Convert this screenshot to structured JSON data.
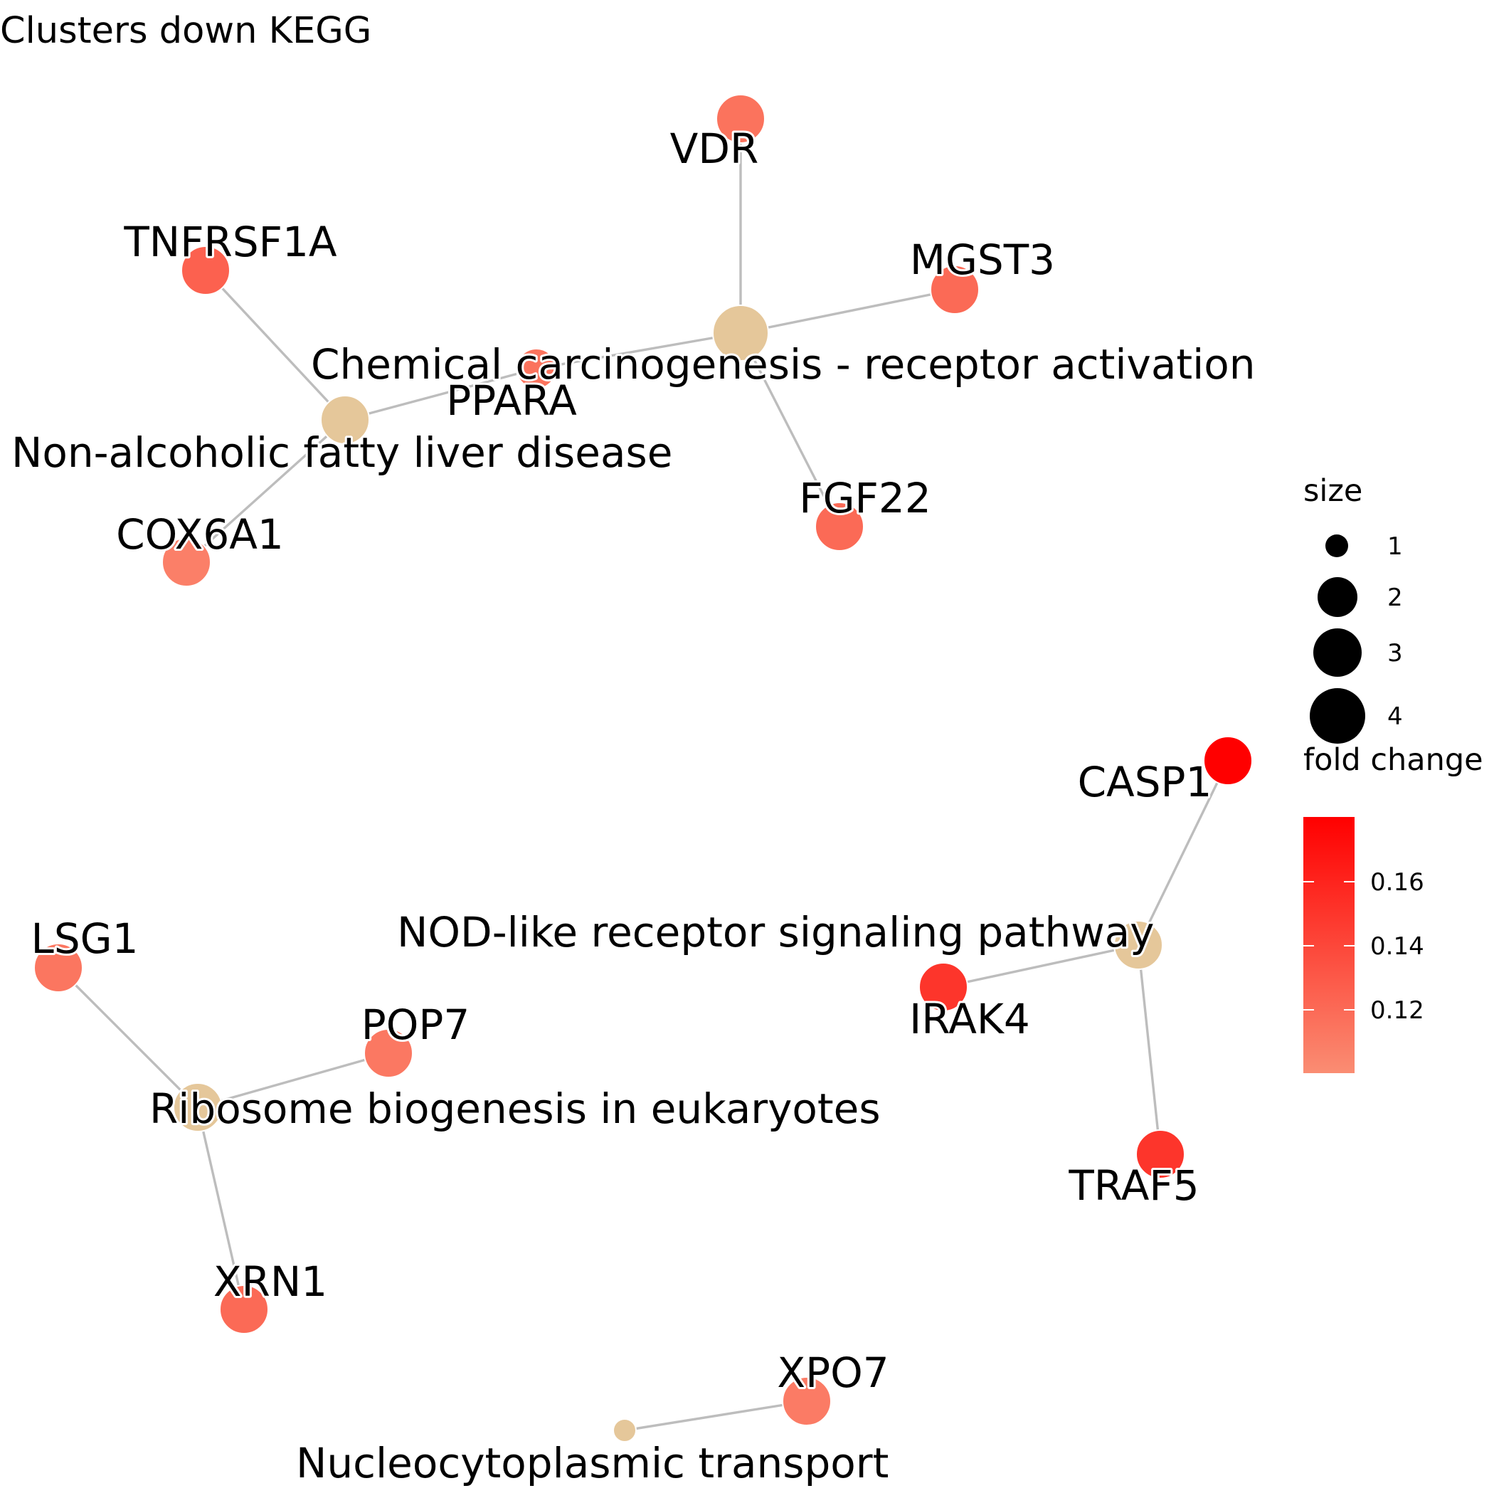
{
  "title": "Clusters down KEGG",
  "colors": {
    "category_node": "#e5c79a",
    "edge": "#bdbdbd",
    "scale_low": "#fa8d73",
    "scale_high": "#ff0000"
  },
  "fold_change_range": [
    0.1,
    0.18
  ],
  "categories": [
    {
      "id": "chem",
      "label": "Chemical carcinogenesis - receptor activation",
      "size": 4
    },
    {
      "id": "nafld",
      "label": "Non-alcoholic fatty liver disease",
      "size": 3
    },
    {
      "id": "nod",
      "label": "NOD-like receptor signaling pathway",
      "size": 3
    },
    {
      "id": "ribo",
      "label": "Ribosome biogenesis in eukaryotes",
      "size": 3
    },
    {
      "id": "nuc",
      "label": "Nucleocytoplasmic transport",
      "size": 1
    }
  ],
  "genes": [
    {
      "id": "VDR",
      "label": "VDR",
      "fold_change": 0.115
    },
    {
      "id": "TNFRSF1A",
      "label": "TNFRSF1A",
      "fold_change": 0.125
    },
    {
      "id": "MGST3",
      "label": "MGST3",
      "fold_change": 0.12
    },
    {
      "id": "PPARA",
      "label": "PPARA",
      "fold_change": 0.115
    },
    {
      "id": "FGF22",
      "label": "FGF22",
      "fold_change": 0.12
    },
    {
      "id": "COX6A1",
      "label": "COX6A1",
      "fold_change": 0.108
    },
    {
      "id": "CASP1",
      "label": "CASP1",
      "fold_change": 0.18
    },
    {
      "id": "IRAK4",
      "label": "IRAK4",
      "fold_change": 0.15
    },
    {
      "id": "TRAF5",
      "label": "TRAF5",
      "fold_change": 0.15
    },
    {
      "id": "LSG1",
      "label": "LSG1",
      "fold_change": 0.113
    },
    {
      "id": "POP7",
      "label": "POP7",
      "fold_change": 0.112
    },
    {
      "id": "XRN1",
      "label": "XRN1",
      "fold_change": 0.12
    },
    {
      "id": "XPO7",
      "label": "XPO7",
      "fold_change": 0.11
    }
  ],
  "edges": [
    [
      "chem",
      "VDR"
    ],
    [
      "chem",
      "MGST3"
    ],
    [
      "chem",
      "PPARA"
    ],
    [
      "chem",
      "FGF22"
    ],
    [
      "nafld",
      "TNFRSF1A"
    ],
    [
      "nafld",
      "PPARA"
    ],
    [
      "nafld",
      "COX6A1"
    ],
    [
      "nod",
      "CASP1"
    ],
    [
      "nod",
      "IRAK4"
    ],
    [
      "nod",
      "TRAF5"
    ],
    [
      "ribo",
      "LSG1"
    ],
    [
      "ribo",
      "POP7"
    ],
    [
      "ribo",
      "XRN1"
    ],
    [
      "nuc",
      "XPO7"
    ]
  ],
  "legend": {
    "size_title": "size",
    "size_values": [
      "1",
      "2",
      "3",
      "4"
    ],
    "color_title": "fold change",
    "color_ticks": [
      "0.16",
      "0.14",
      "0.12"
    ]
  }
}
